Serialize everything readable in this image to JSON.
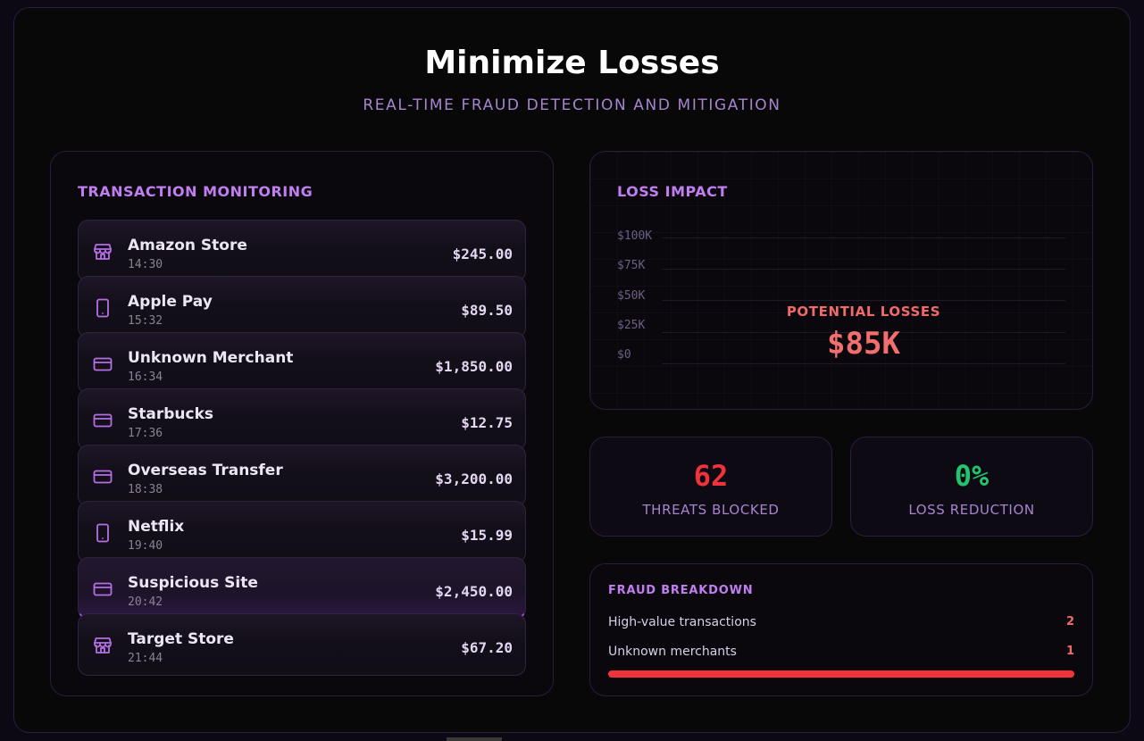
{
  "header": {
    "title": "Minimize Losses",
    "subtitle": "REAL-TIME FRAUD DETECTION AND MITIGATION"
  },
  "transactions": {
    "title": "TRANSACTION MONITORING",
    "items": [
      {
        "name": "Amazon Store",
        "time": "14:30",
        "amount": "$245.00",
        "icon": "store-icon"
      },
      {
        "name": "Apple Pay",
        "time": "15:32",
        "amount": "$89.50",
        "icon": "phone-icon"
      },
      {
        "name": "Unknown Merchant",
        "time": "16:34",
        "amount": "$1,850.00",
        "icon": "credit-card-icon"
      },
      {
        "name": "Starbucks",
        "time": "17:36",
        "amount": "$12.75",
        "icon": "credit-card-icon"
      },
      {
        "name": "Overseas Transfer",
        "time": "18:38",
        "amount": "$3,200.00",
        "icon": "credit-card-icon"
      },
      {
        "name": "Netflix",
        "time": "19:40",
        "amount": "$15.99",
        "icon": "phone-icon"
      },
      {
        "name": "Suspicious Site",
        "time": "20:42",
        "amount": "$2,450.00",
        "icon": "credit-card-icon"
      },
      {
        "name": "Target Store",
        "time": "21:44",
        "amount": "$67.20",
        "icon": "store-icon"
      }
    ]
  },
  "loss_impact": {
    "title": "LOSS IMPACT",
    "y_ticks": [
      "$100K",
      "$75K",
      "$50K",
      "$25K",
      "$0"
    ],
    "potential_label": "POTENTIAL LOSSES",
    "potential_value": "$85K"
  },
  "stats": {
    "threats": {
      "value": "62",
      "label": "THREATS BLOCKED",
      "color": "#f0333a"
    },
    "reduction": {
      "value": "0%",
      "label": "LOSS REDUCTION",
      "color": "#22c46e"
    }
  },
  "breakdown": {
    "title": "FRAUD BREAKDOWN",
    "rows": [
      {
        "label": "High-value transactions",
        "count": "2"
      },
      {
        "label": "Unknown merchants",
        "count": "1"
      }
    ],
    "bar_fraction": 1.0
  },
  "colors": {
    "accent": "#c07ef0",
    "danger": "#f0333a",
    "success": "#22c46e"
  }
}
